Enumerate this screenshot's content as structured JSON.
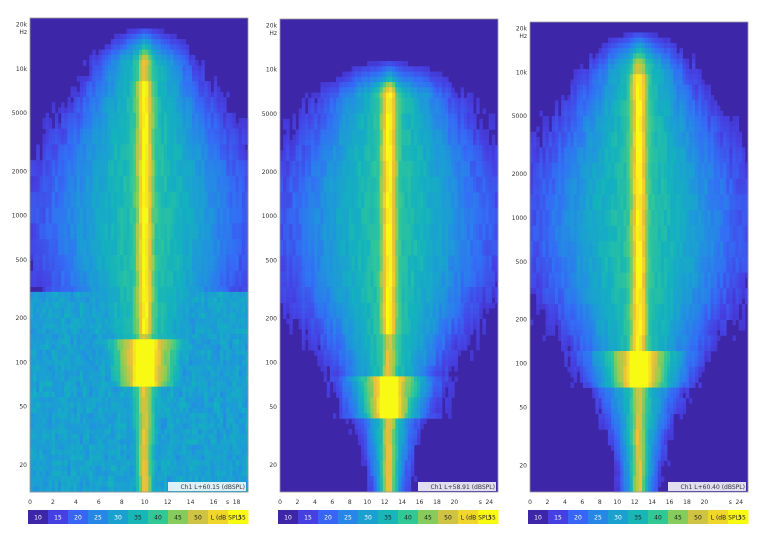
{
  "chart_data": [
    {
      "type": "heatmap",
      "yscale": "log",
      "ylim": [
        13,
        22000
      ],
      "y_tick_labels": [
        "20k",
        "10k",
        "5000",
        "2000",
        "1000",
        "500",
        "200",
        "100",
        "50",
        "20"
      ],
      "y_tick_values": [
        20000,
        10000,
        5000,
        2000,
        1000,
        500,
        200,
        100,
        50,
        20
      ],
      "y_unit_label": "Hz",
      "xlim": [
        0,
        19
      ],
      "x_tick_labels": [
        "0",
        "2",
        "4",
        "6",
        "8",
        "10",
        "12",
        "14",
        "16",
        "18"
      ],
      "x_tick_values": [
        0,
        2,
        4,
        6,
        8,
        10,
        12,
        14,
        16,
        18
      ],
      "x_unit_label": "s",
      "corner_label": "Ch1 L+60.15 (dBSPL)",
      "colorbar": {
        "ticks": [
          "10",
          "15",
          "20",
          "25",
          "30",
          "35",
          "40",
          "45",
          "50"
        ],
        "label": "L (dB SPL)",
        "max": "55"
      },
      "features": {
        "core_center_s": 10.0,
        "core_from_hz": 150,
        "core_to_hz": 8000,
        "low_hot_center_hz": 95,
        "low_hot_band_hz": [
          70,
          140
        ],
        "broadband_noise_below_hz": 300,
        "high_limit_hz": 20000
      }
    },
    {
      "type": "heatmap",
      "yscale": "log",
      "ylim": [
        13,
        22000
      ],
      "y_tick_labels": [
        "20k",
        "10k",
        "5000",
        "2000",
        "1000",
        "500",
        "200",
        "100",
        "50",
        "20"
      ],
      "y_tick_values": [
        20000,
        10000,
        5000,
        2000,
        1000,
        500,
        200,
        100,
        50,
        20
      ],
      "y_unit_label": "Hz",
      "xlim": [
        0,
        25
      ],
      "x_tick_labels": [
        "0",
        "2",
        "4",
        "6",
        "8",
        "10",
        "12",
        "14",
        "16",
        "18",
        "20",
        "24"
      ],
      "x_tick_values": [
        0,
        2,
        4,
        6,
        8,
        10,
        12,
        14,
        16,
        18,
        20,
        24
      ],
      "x_unit_label": "s",
      "corner_label": "Ch1 L+58.91 (dBSPL)",
      "colorbar": {
        "ticks": [
          "10",
          "15",
          "20",
          "25",
          "30",
          "35",
          "40",
          "45",
          "50"
        ],
        "label": "L (dB SPL)",
        "max": "55"
      },
      "features": {
        "core_center_s": 12.5,
        "core_from_hz": 150,
        "core_to_hz": 8000,
        "low_hot_center_hz": 60,
        "low_hot_band_hz": [
          40,
          80
        ],
        "broadband_noise_below_hz": 0,
        "high_limit_hz": 12000
      }
    },
    {
      "type": "heatmap",
      "yscale": "log",
      "ylim": [
        13,
        22000
      ],
      "y_tick_labels": [
        "20k",
        "10k",
        "5000",
        "2000",
        "1000",
        "500",
        "200",
        "100",
        "50",
        "20"
      ],
      "y_tick_values": [
        20000,
        10000,
        5000,
        2000,
        1000,
        500,
        200,
        100,
        50,
        20
      ],
      "y_unit_label": "Hz",
      "xlim": [
        0,
        25
      ],
      "x_tick_labels": [
        "0",
        "2",
        "4",
        "6",
        "8",
        "10",
        "12",
        "14",
        "16",
        "18",
        "20",
        "24"
      ],
      "x_tick_values": [
        0,
        2,
        4,
        6,
        8,
        10,
        12,
        14,
        16,
        18,
        20,
        24
      ],
      "x_unit_label": "s",
      "corner_label": "Ch1 L+60.40 (dBSPL)",
      "colorbar": {
        "ticks": [
          "10",
          "15",
          "20",
          "25",
          "30",
          "35",
          "40",
          "45",
          "50"
        ],
        "label": "L (dB SPL)",
        "max": "55"
      },
      "features": {
        "core_center_s": 12.5,
        "core_from_hz": 120,
        "core_to_hz": 10000,
        "low_hot_center_hz": 90,
        "low_hot_band_hz": [
          70,
          120
        ],
        "broadband_noise_below_hz": 0,
        "high_limit_hz": 20000
      }
    }
  ]
}
